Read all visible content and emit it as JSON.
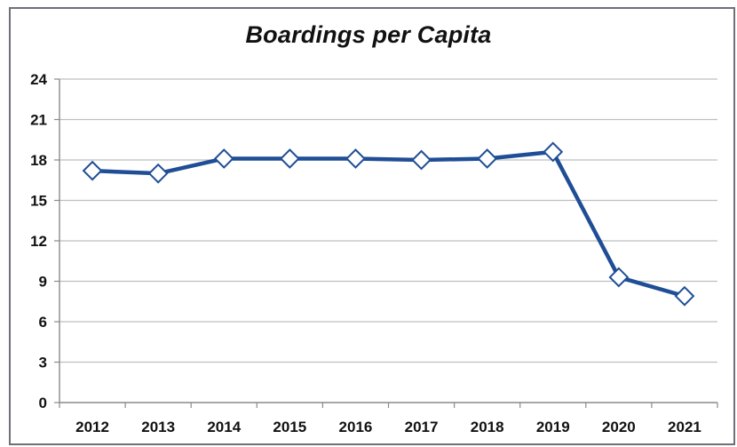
{
  "chart_data": {
    "type": "line",
    "title": "Boardings per Capita",
    "xlabel": "",
    "ylabel": "",
    "categories": [
      "2012",
      "2013",
      "2014",
      "2015",
      "2016",
      "2017",
      "2018",
      "2019",
      "2020",
      "2021"
    ],
    "series": [
      {
        "values": [
          17.2,
          17.0,
          18.1,
          18.1,
          18.1,
          18.0,
          18.1,
          18.6,
          9.3,
          7.9
        ]
      }
    ],
    "ylim": [
      0,
      24
    ],
    "yticks": [
      0,
      3,
      6,
      9,
      12,
      15,
      18,
      21,
      24
    ],
    "grid": true,
    "legend": "none",
    "colors": {
      "line": "#1f4e96",
      "marker_fill": "#ffffff",
      "grid": "#bfbfbf",
      "axis": "#8a8a8a"
    }
  }
}
